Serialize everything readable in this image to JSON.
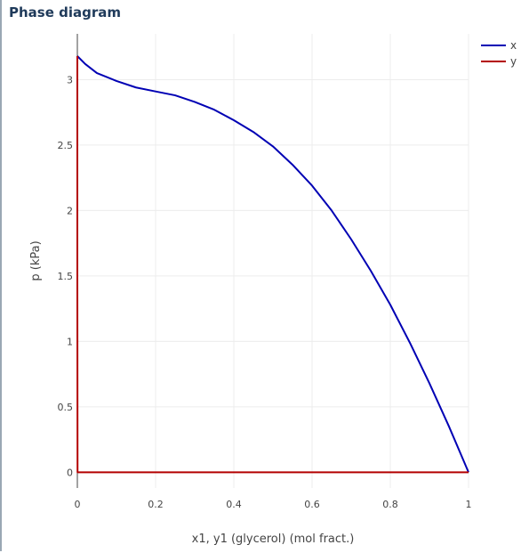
{
  "panel": {
    "title": "Phase diagram"
  },
  "chart_data": {
    "type": "line",
    "title": "",
    "xlabel": "x1, y1 (glycerol) (mol fract.)",
    "ylabel": "p (kPa)",
    "xlim": [
      0,
      1
    ],
    "ylim": [
      -0.12,
      3.35
    ],
    "xticks": [
      0,
      0.2,
      0.4,
      0.6,
      0.8,
      1
    ],
    "xtick_labels": [
      "0",
      "0.2",
      "0.4",
      "0.6",
      "0.8",
      "1"
    ],
    "yticks": [
      0,
      0.5,
      1,
      1.5,
      2,
      2.5,
      3
    ],
    "ytick_labels": [
      "0",
      "0.5",
      "1",
      "1.5",
      "2",
      "2.5",
      "3"
    ],
    "grid": true,
    "legend_position": "top-right",
    "series": [
      {
        "name": "x",
        "color": "#0000b4",
        "x": [
          0,
          0.02,
          0.05,
          0.1,
          0.15,
          0.2,
          0.25,
          0.3,
          0.35,
          0.4,
          0.45,
          0.5,
          0.55,
          0.6,
          0.65,
          0.7,
          0.75,
          0.8,
          0.85,
          0.9,
          0.95,
          1.0
        ],
        "y": [
          3.18,
          3.12,
          3.05,
          2.99,
          2.94,
          2.91,
          2.88,
          2.83,
          2.77,
          2.69,
          2.6,
          2.49,
          2.35,
          2.19,
          2.0,
          1.78,
          1.54,
          1.28,
          0.99,
          0.68,
          0.35,
          0.0
        ]
      },
      {
        "name": "y",
        "color": "#b40000",
        "x": [
          0,
          0,
          0.0005,
          0.3,
          0.6,
          0.8,
          1.0
        ],
        "y": [
          3.18,
          1.5,
          0.0,
          0.0,
          0.0,
          0.0,
          0.0
        ]
      }
    ]
  }
}
